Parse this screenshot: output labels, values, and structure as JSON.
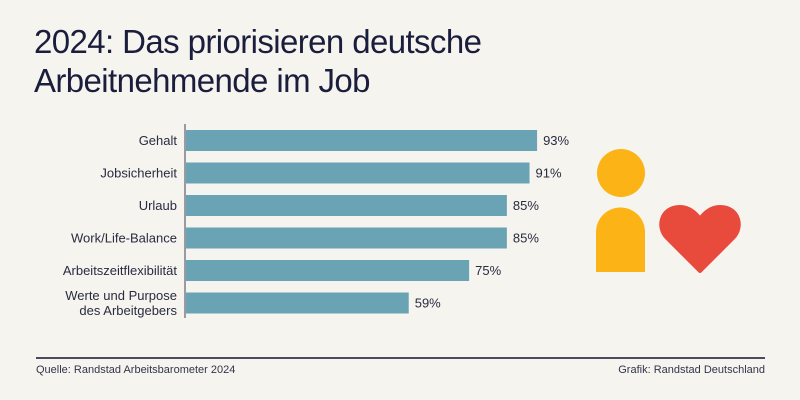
{
  "title_line1": "2024: Das priorisieren deutsche",
  "title_line2": "Arbeitnehmende im Job",
  "footer": {
    "source": "Quelle: Randstad Arbeitsbarometer 2024",
    "credit": "Grafik: Randstad Deutschland"
  },
  "colors": {
    "bar": "#6aa3b4",
    "person": "#fbb316",
    "heart": "#e84a3c",
    "background": "#f5f4ef"
  },
  "icons": [
    "person-icon",
    "heart-icon"
  ],
  "chart_data": {
    "type": "bar",
    "orientation": "horizontal",
    "title": "2024: Das priorisieren deutsche Arbeitnehmende im Job",
    "categories": [
      [
        "Gehalt"
      ],
      [
        "Jobsicherheit"
      ],
      [
        "Urlaub"
      ],
      [
        "Work/Life-Balance"
      ],
      [
        "Arbeitszeitflexibilität"
      ],
      [
        "Werte und Purpose",
        "des Arbeitgebers"
      ]
    ],
    "values": [
      93,
      91,
      85,
      85,
      75,
      59
    ],
    "value_labels": [
      "93%",
      "91%",
      "85%",
      "85%",
      "75%",
      "59%"
    ],
    "unit": "%",
    "xlabel": "",
    "ylabel": "",
    "xlim": [
      0,
      100
    ],
    "grid": false,
    "legend": "none"
  }
}
